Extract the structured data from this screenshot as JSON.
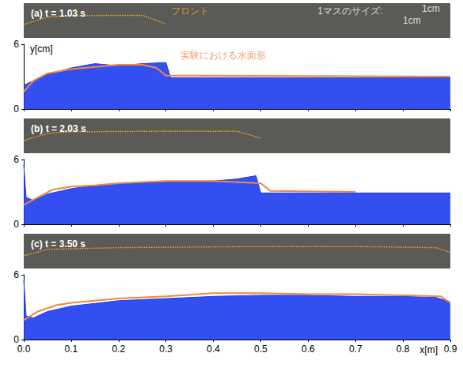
{
  "chart_data": [
    {
      "type": "line",
      "title": "(a) t = 1.03 s",
      "xlim": [
        0,
        0.9
      ],
      "ylim": [
        0,
        6
      ],
      "tick_labels": false,
      "grid": false,
      "series": [
        {
          "color": "#f5a623",
          "line_style": "dotted",
          "x": [
            0,
            0.05,
            0.1,
            0.2,
            0.25,
            0.3
          ],
          "values": [
            2.3,
            3.6,
            3.8,
            3.9,
            3.9,
            2.4
          ]
        }
      ],
      "annotations": [
        {
          "text": "フロント",
          "x": 0.31,
          "y": 4.7,
          "color": "#f5a623"
        },
        {
          "text": "1マスのサイズ:",
          "x": 0.62,
          "y": 4.6,
          "color": "#ffffff"
        },
        {
          "text": "1cm",
          "x": 0.84,
          "y": 5.0,
          "color": "#ffffff"
        },
        {
          "text": "1cm",
          "x": 0.8,
          "y": 3.0,
          "color": "#ffffff"
        }
      ]
    },
    {
      "type": "line",
      "xlim": [
        0,
        0.9
      ],
      "ylim": [
        0,
        6
      ],
      "yticks": [
        0,
        6
      ],
      "ylabel": "y[cm]",
      "tick_labels": "y",
      "grid": false,
      "xticks": [
        {
          "value": 0,
          "label": "0.0"
        },
        {
          "value": 0.1,
          "label": "0.1"
        },
        {
          "value": 0.2,
          "label": "0.2"
        },
        {
          "value": 0.3,
          "label": "0.3"
        },
        {
          "value": 0.4,
          "label": "0.4"
        },
        {
          "value": 0.5,
          "label": "0.5"
        },
        {
          "value": 0.6,
          "label": "0.6"
        },
        {
          "value": 0.7,
          "label": "0.7"
        },
        {
          "value": 0.8,
          "label": "0.8"
        },
        {
          "value": 0.9,
          "label": "0.9"
        }
      ],
      "series": [
        {
          "type": "area",
          "color": "#1e3cf0",
          "x": [
            0,
            0.02,
            0.05,
            0.1,
            0.15,
            0.2,
            0.25,
            0.3,
            0.31,
            0.9
          ],
          "values": [
            2.2,
            2.6,
            3.2,
            3.8,
            4.2,
            4.0,
            4.2,
            4.3,
            2.9,
            2.9
          ]
        },
        {
          "type": "line",
          "color": "#f0883e",
          "line_style": "solid",
          "x": [
            0,
            0.02,
            0.05,
            0.1,
            0.15,
            0.2,
            0.25,
            0.28,
            0.3,
            0.9
          ],
          "values": [
            1.6,
            2.6,
            3.3,
            3.7,
            3.9,
            4.1,
            4.1,
            3.8,
            3.1,
            3.0
          ]
        }
      ],
      "annotations": [
        {
          "text": "実験における水面形",
          "x": 0.33,
          "y": 5.0,
          "color": "#f0883e"
        }
      ]
    },
    {
      "type": "line",
      "title": "(b) t = 2.03 s",
      "xlim": [
        0,
        0.9
      ],
      "ylim": [
        0,
        6
      ],
      "tick_labels": false,
      "grid": false,
      "series": [
        {
          "color": "#f5a623",
          "line_style": "dotted",
          "x": [
            0,
            0.05,
            0.1,
            0.3,
            0.45,
            0.5
          ],
          "values": [
            2.2,
            3.4,
            3.7,
            3.8,
            3.8,
            2.6
          ]
        }
      ]
    },
    {
      "type": "line",
      "xlim": [
        0,
        0.9
      ],
      "ylim": [
        0,
        6
      ],
      "yticks": [
        0,
        6
      ],
      "tick_labels": "y",
      "grid": false,
      "xticks": [
        {
          "value": 0,
          "label": "0.0"
        },
        {
          "value": 0.1,
          "label": "0.1"
        },
        {
          "value": 0.2,
          "label": "0.2"
        },
        {
          "value": 0.3,
          "label": "0.3"
        },
        {
          "value": 0.4,
          "label": "0.4"
        },
        {
          "value": 0.5,
          "label": "0.5"
        },
        {
          "value": 0.6,
          "label": "0.6"
        },
        {
          "value": 0.7,
          "label": "0.7"
        },
        {
          "value": 0.8,
          "label": "0.8"
        },
        {
          "value": 0.9,
          "label": "0.9"
        }
      ],
      "series": [
        {
          "type": "area",
          "color": "#1e3cf0",
          "x": [
            0,
            0.005,
            0.02,
            0.05,
            0.1,
            0.15,
            0.2,
            0.3,
            0.4,
            0.45,
            0.49,
            0.5,
            0.9
          ],
          "values": [
            5.5,
            2.5,
            2.2,
            2.8,
            3.3,
            3.6,
            3.8,
            3.9,
            4.0,
            4.2,
            4.5,
            2.9,
            2.9
          ]
        },
        {
          "type": "line",
          "color": "#f0883e",
          "line_style": "solid",
          "x": [
            0,
            0.03,
            0.06,
            0.1,
            0.15,
            0.2,
            0.3,
            0.4,
            0.5,
            0.52,
            0.7
          ],
          "values": [
            1.8,
            2.5,
            3.2,
            3.5,
            3.6,
            3.8,
            4.0,
            4.0,
            3.8,
            3.1,
            3.0
          ]
        }
      ]
    },
    {
      "type": "line",
      "title": "(c) t = 3.50 s",
      "xlim": [
        0,
        0.9
      ],
      "ylim": [
        0,
        6
      ],
      "tick_labels": false,
      "grid": false,
      "series": [
        {
          "color": "#f5a623",
          "line_style": "dotted",
          "x": [
            0,
            0.05,
            0.2,
            0.5,
            0.7,
            0.87,
            0.9
          ],
          "values": [
            2.2,
            3.3,
            3.6,
            3.8,
            3.8,
            3.6,
            2.8
          ]
        }
      ]
    },
    {
      "type": "line",
      "xlim": [
        0,
        0.9
      ],
      "ylim": [
        0,
        6
      ],
      "yticks": [
        0,
        6
      ],
      "xlabel": "x[m]",
      "grid": false,
      "xticks": [
        {
          "value": 0,
          "label": "0.0"
        },
        {
          "value": 0.1,
          "label": "0.1"
        },
        {
          "value": 0.2,
          "label": "0.2"
        },
        {
          "value": 0.3,
          "label": "0.3"
        },
        {
          "value": 0.4,
          "label": "0.4"
        },
        {
          "value": 0.5,
          "label": "0.5"
        },
        {
          "value": 0.6,
          "label": "0.6"
        },
        {
          "value": 0.7,
          "label": "0.7"
        },
        {
          "value": 0.8,
          "label": "0.8"
        },
        {
          "value": 0.9,
          "label": "0.9"
        }
      ],
      "series": [
        {
          "type": "area",
          "color": "#1e3cf0",
          "x": [
            0,
            0.005,
            0.02,
            0.05,
            0.1,
            0.2,
            0.3,
            0.4,
            0.5,
            0.6,
            0.7,
            0.8,
            0.87,
            0.9
          ],
          "values": [
            5.5,
            2.2,
            2.0,
            2.6,
            3.1,
            3.6,
            3.8,
            4.0,
            4.1,
            4.1,
            4.0,
            4.0,
            3.9,
            3.5
          ]
        },
        {
          "type": "line",
          "color": "#f0883e",
          "line_style": "solid",
          "x": [
            0,
            0.03,
            0.07,
            0.1,
            0.2,
            0.3,
            0.4,
            0.5,
            0.6,
            0.7,
            0.8,
            0.88,
            0.9
          ],
          "values": [
            1.8,
            2.6,
            3.2,
            3.4,
            3.8,
            4.0,
            4.3,
            4.3,
            4.2,
            4.2,
            4.1,
            4.0,
            3.4
          ]
        }
      ]
    }
  ]
}
